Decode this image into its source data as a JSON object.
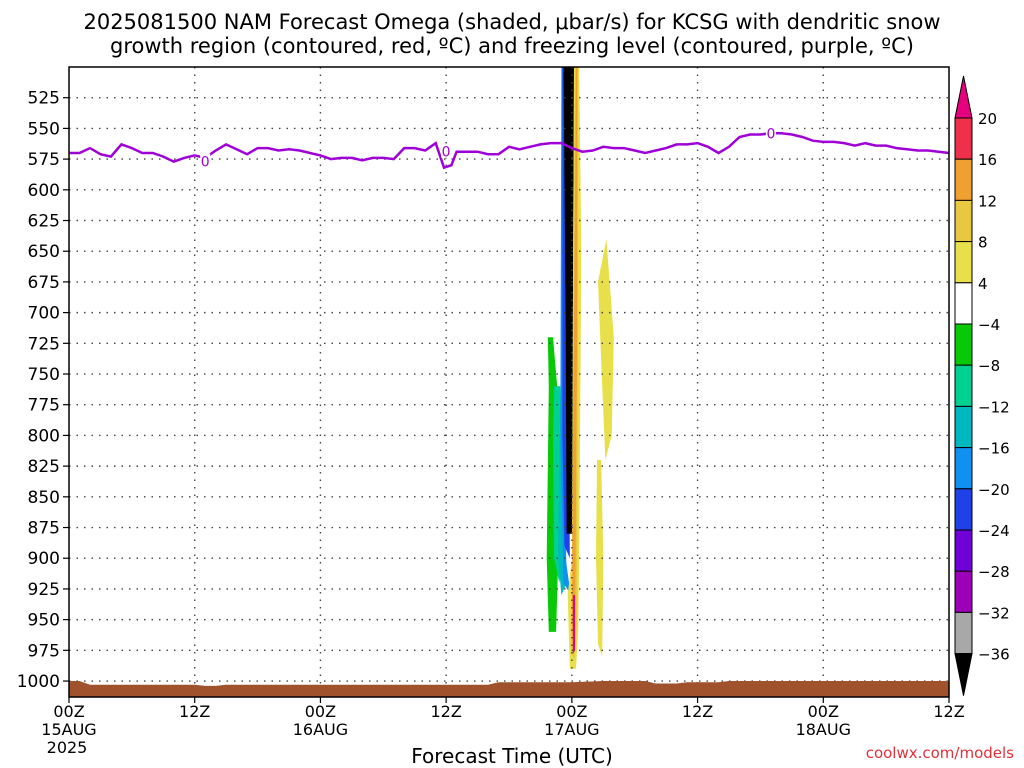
{
  "title": {
    "line1": "2025081500 NAM Forecast Omega (shaded, μbar/s) for KCSG with dendritic snow",
    "line2": "growth region (contoured, red, ºC) and freezing level (contoured, purple, ºC)"
  },
  "credit": "coolwx.com/models",
  "colors": {
    "freezing_contour": "#a000d8",
    "ground": "#a0522d",
    "background": "#ffffff"
  },
  "chart_data": {
    "type": "heatmap",
    "xlabel": "Forecast Time (UTC)",
    "ylabel": "",
    "x_unit": "hours since 2025-08-15 00Z",
    "xlim": [
      0,
      84
    ],
    "x_ticks": [
      {
        "value": 0,
        "label": "00Z",
        "sub": "15AUG",
        "sub2": "2025"
      },
      {
        "value": 12,
        "label": "12Z"
      },
      {
        "value": 24,
        "label": "00Z",
        "sub": "16AUG"
      },
      {
        "value": 36,
        "label": "12Z"
      },
      {
        "value": 48,
        "label": "00Z",
        "sub": "17AUG"
      },
      {
        "value": 60,
        "label": "12Z"
      },
      {
        "value": 72,
        "label": "00Z",
        "sub": "18AUG"
      },
      {
        "value": 84,
        "label": "12Z"
      }
    ],
    "ylim": [
      500,
      1013
    ],
    "y_ticks": [
      525,
      550,
      575,
      600,
      625,
      650,
      675,
      700,
      725,
      750,
      775,
      800,
      825,
      850,
      875,
      900,
      925,
      950,
      975,
      1000
    ],
    "grid": true,
    "colorbar": {
      "labels": [
        "20",
        "16",
        "12",
        "8",
        "4",
        "−4",
        "−8",
        "−12",
        "−16",
        "−20",
        "−24",
        "−28",
        "−32",
        "−36"
      ],
      "top_color": "#e6007e",
      "colors": [
        "#f0304a",
        "#f0a030",
        "#e8c840",
        "#e8e04a",
        "#ffffff",
        "#08c808",
        "#00d090",
        "#00b8c0",
        "#1090f0",
        "#2040e8",
        "#7000d8",
        "#9c00b8",
        "#a8a8a8"
      ],
      "bottom_color": "#000000"
    },
    "freezing_level": {
      "name": "0",
      "points": [
        [
          0,
          570
        ],
        [
          1,
          570
        ],
        [
          2,
          566
        ],
        [
          3,
          571
        ],
        [
          4,
          573
        ],
        [
          5,
          563
        ],
        [
          6,
          566
        ],
        [
          7,
          570
        ],
        [
          8,
          570
        ],
        [
          9,
          573
        ],
        [
          10,
          577
        ],
        [
          11,
          574
        ],
        [
          12,
          572
        ],
        [
          13,
          574
        ],
        [
          14,
          568
        ],
        [
          15,
          563
        ],
        [
          16,
          567
        ],
        [
          17,
          571
        ],
        [
          18,
          566
        ],
        [
          19,
          566
        ],
        [
          20,
          568
        ],
        [
          21,
          567
        ],
        [
          22,
          568
        ],
        [
          23,
          570
        ],
        [
          24,
          572
        ],
        [
          25,
          575
        ],
        [
          26,
          574
        ],
        [
          27,
          574
        ],
        [
          28,
          576
        ],
        [
          29,
          574
        ],
        [
          30,
          574
        ],
        [
          31,
          575
        ],
        [
          32,
          566
        ],
        [
          33,
          566
        ],
        [
          34,
          568
        ],
        [
          35,
          562
        ],
        [
          35.8,
          582
        ],
        [
          36.5,
          580
        ],
        [
          37,
          569
        ],
        [
          38,
          569
        ],
        [
          39,
          569
        ],
        [
          40,
          571
        ],
        [
          41,
          571
        ],
        [
          42,
          565
        ],
        [
          43,
          567
        ],
        [
          44,
          565
        ],
        [
          45,
          563
        ],
        [
          46,
          562
        ],
        [
          47,
          562
        ],
        [
          48,
          566
        ],
        [
          49,
          569
        ],
        [
          50,
          568
        ],
        [
          51,
          565
        ],
        [
          52,
          566
        ],
        [
          53,
          566
        ],
        [
          54,
          568
        ],
        [
          55,
          570
        ],
        [
          56,
          568
        ],
        [
          57,
          566
        ],
        [
          58,
          563
        ],
        [
          59,
          563
        ],
        [
          60,
          562
        ],
        [
          61,
          565
        ],
        [
          62,
          570
        ],
        [
          63,
          565
        ],
        [
          64,
          557
        ],
        [
          65,
          555
        ],
        [
          66,
          555
        ],
        [
          67,
          554
        ],
        [
          68,
          554
        ],
        [
          69,
          555
        ],
        [
          70,
          557
        ],
        [
          71,
          560
        ],
        [
          72,
          561
        ],
        [
          73,
          561
        ],
        [
          74,
          562
        ],
        [
          75,
          564
        ],
        [
          76,
          562
        ],
        [
          77,
          564
        ],
        [
          78,
          564
        ],
        [
          79,
          566
        ],
        [
          80,
          567
        ],
        [
          81,
          568
        ],
        [
          82,
          568
        ],
        [
          83,
          569
        ],
        [
          84,
          570
        ]
      ],
      "labels": [
        {
          "x": 13,
          "y": 577,
          "text": "0"
        },
        {
          "x": 36,
          "y": 569,
          "text": "0"
        },
        {
          "x": 67,
          "y": 554,
          "text": "0"
        }
      ]
    },
    "ground": [
      [
        0,
        1000
      ],
      [
        1,
        1000
      ],
      [
        2,
        1003
      ],
      [
        5,
        1003
      ],
      [
        12,
        1003
      ],
      [
        13,
        1004
      ],
      [
        14,
        1004
      ],
      [
        15,
        1003
      ],
      [
        40,
        1003
      ],
      [
        41,
        1001
      ],
      [
        48,
        1001
      ],
      [
        51,
        1000
      ],
      [
        55,
        1000
      ],
      [
        56,
        1002
      ],
      [
        58,
        1002
      ],
      [
        59,
        1001
      ],
      [
        62,
        1001
      ],
      [
        63,
        1000
      ],
      [
        84,
        1000
      ]
    ],
    "omega_regions": [
      {
        "color": "#08c808",
        "value": "-4 to -8",
        "points": [
          [
            45.7,
            720
          ],
          [
            46.2,
            720
          ],
          [
            46.8,
            780
          ],
          [
            46.7,
            900
          ],
          [
            46.5,
            960
          ],
          [
            45.8,
            960
          ],
          [
            45.6,
            900
          ],
          [
            45.8,
            760
          ]
        ]
      },
      {
        "color": "#00d090",
        "value": "-8 to -12",
        "points": [
          [
            46.3,
            760
          ],
          [
            46.9,
            760
          ],
          [
            47.2,
            900
          ],
          [
            46.8,
            920
          ],
          [
            46.3,
            900
          ],
          [
            46.2,
            800
          ]
        ]
      },
      {
        "color": "#00b8c0",
        "value": "-12 to -16",
        "points": [
          [
            46.8,
            800
          ],
          [
            47.3,
            800
          ],
          [
            47.5,
            920
          ],
          [
            47.0,
            930
          ],
          [
            46.7,
            900
          ]
        ]
      },
      {
        "color": "#1090f0",
        "value": "-16 to -20",
        "points": [
          [
            47.0,
            500
          ],
          [
            47.3,
            500
          ],
          [
            47.4,
            900
          ],
          [
            47.9,
            930
          ],
          [
            47.2,
            920
          ],
          [
            46.9,
            800
          ]
        ]
      },
      {
        "color": "#2040e8",
        "value": "-20 to -24",
        "points": [
          [
            47.1,
            500
          ],
          [
            47.4,
            500
          ],
          [
            47.7,
            600
          ],
          [
            47.8,
            900
          ],
          [
            47.3,
            890
          ],
          [
            47.1,
            800
          ]
        ]
      },
      {
        "color": "#000000",
        "value": "<= -36",
        "points": [
          [
            47.2,
            500
          ],
          [
            48.2,
            500
          ],
          [
            48.1,
            700
          ],
          [
            48.1,
            880
          ],
          [
            47.5,
            880
          ],
          [
            47.4,
            700
          ]
        ]
      },
      {
        "color": "#e8e04a",
        "value": "4 to 8",
        "points": [
          [
            48.2,
            500
          ],
          [
            48.7,
            500
          ],
          [
            48.9,
            650
          ],
          [
            48.7,
            900
          ],
          [
            48.6,
            960
          ],
          [
            48.4,
            990
          ],
          [
            47.8,
            990
          ],
          [
            47.6,
            930
          ],
          [
            48.0,
            900
          ],
          [
            48.1,
            700
          ]
        ]
      },
      {
        "color": "#e8c840",
        "value": "8 to 12",
        "points": [
          [
            48.3,
            500
          ],
          [
            48.6,
            500
          ],
          [
            48.6,
            700
          ],
          [
            48.5,
            950
          ],
          [
            48.2,
            985
          ],
          [
            47.9,
            970
          ],
          [
            48.0,
            920
          ]
        ]
      },
      {
        "color": "#f0a030",
        "value": "12 to 16",
        "points": [
          [
            48.4,
            500
          ],
          [
            48.5,
            500
          ],
          [
            48.5,
            720
          ],
          [
            48.3,
            970
          ],
          [
            48.1,
            980
          ],
          [
            48.0,
            950
          ]
        ]
      },
      {
        "color": "#e6007e",
        "value": ">= 20",
        "points": [
          [
            48.1,
            930
          ],
          [
            48.3,
            930
          ],
          [
            48.3,
            975
          ],
          [
            48.1,
            978
          ]
        ]
      },
      {
        "color": "#e8e04a",
        "value": "4 to 8",
        "points": [
          [
            50.5,
            675
          ],
          [
            51.3,
            640
          ],
          [
            52.0,
            720
          ],
          [
            51.8,
            800
          ],
          [
            51.2,
            820
          ],
          [
            50.9,
            760
          ]
        ]
      },
      {
        "color": "#e8e04a",
        "value": "4 to 8",
        "points": [
          [
            50.4,
            820
          ],
          [
            50.8,
            820
          ],
          [
            51.0,
            900
          ],
          [
            50.9,
            980
          ],
          [
            50.5,
            970
          ],
          [
            50.3,
            900
          ]
        ]
      }
    ]
  }
}
